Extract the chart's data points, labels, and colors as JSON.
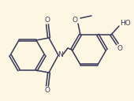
{
  "background_color": "#fdf6e3",
  "line_color": "#3d3d5c",
  "text_color": "#3d3d5c",
  "line_width": 1.15,
  "font_size": 6.5,
  "xlim": [
    0,
    170
  ],
  "ylim": [
    0,
    128
  ]
}
